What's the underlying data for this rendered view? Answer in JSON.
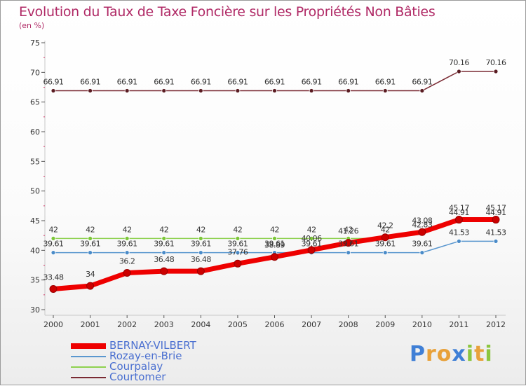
{
  "title": "Evolution du Taux de Taxe Foncière sur les Propriétés Non Bâties",
  "subtitle": "(en %)",
  "logo": {
    "text": "Proxiti",
    "letters": [
      {
        "ch": "P",
        "color": "#3f7fd6"
      },
      {
        "ch": "r",
        "color": "#e8a13a"
      },
      {
        "ch": "o",
        "color": "#e8a13a"
      },
      {
        "ch": "x",
        "color": "#3f7fd6"
      },
      {
        "ch": "i",
        "color": "#8cc63f"
      },
      {
        "ch": "t",
        "color": "#e8a13a"
      },
      {
        "ch": "i",
        "color": "#8cc63f"
      }
    ]
  },
  "chart_data": {
    "type": "line",
    "title": "Evolution du Taux de Taxe Foncière sur les Propriétés Non Bâties",
    "ylabel": "(en %)",
    "x": [
      2000,
      2001,
      2002,
      2003,
      2004,
      2005,
      2006,
      2007,
      2008,
      2009,
      2010,
      2011,
      2012
    ],
    "ylim": [
      30,
      75
    ],
    "yticks": [
      30,
      35,
      40,
      45,
      50,
      55,
      60,
      65,
      70,
      75
    ],
    "grid": false,
    "legend": "bottom-left",
    "series": [
      {
        "name": "BERNAY-VILBERT",
        "color": "#ee0000",
        "values": [
          33.48,
          34,
          36.2,
          36.48,
          36.48,
          37.76,
          38.89,
          40.06,
          41.26,
          42.2,
          43.08,
          45.17,
          45.17
        ],
        "labels": [
          "33.48",
          "34",
          "36.2",
          "36.48",
          "36.48",
          "37.76",
          "38.89",
          "40.06",
          "41.26",
          "42.2",
          "43.08",
          "45.17",
          "45.17"
        ]
      },
      {
        "name": "Rozay-en-Brie",
        "color": "#5a97cf",
        "values": [
          39.61,
          39.61,
          39.61,
          39.61,
          39.61,
          39.61,
          39.61,
          39.61,
          39.61,
          39.61,
          39.61,
          41.53,
          41.53
        ],
        "labels": [
          "39.61",
          "39.61",
          "39.61",
          "39.61",
          "39.61",
          "39.61",
          "39.61",
          "39.61",
          "39.61",
          "39.61",
          "39.61",
          "41.53",
          "41.53"
        ]
      },
      {
        "name": "Courpalay",
        "color": "#8ed14f",
        "values": [
          42,
          42,
          42,
          42,
          42,
          42,
          42,
          42,
          42,
          42,
          42.83,
          44.91,
          44.91
        ],
        "labels": [
          "42",
          "42",
          "42",
          "42",
          "42",
          "42",
          "42",
          "42",
          "42",
          "42",
          "42.83",
          "44.91",
          "44.91"
        ]
      },
      {
        "name": "Courtomer",
        "color": "#7a2a33",
        "values": [
          66.91,
          66.91,
          66.91,
          66.91,
          66.91,
          66.91,
          66.91,
          66.91,
          66.91,
          66.91,
          66.91,
          70.16,
          70.16
        ],
        "labels": [
          "66.91",
          "66.91",
          "66.91",
          "66.91",
          "66.91",
          "66.91",
          "66.91",
          "66.91",
          "66.91",
          "66.91",
          "66.91",
          "70.16",
          "70.16"
        ]
      }
    ]
  }
}
